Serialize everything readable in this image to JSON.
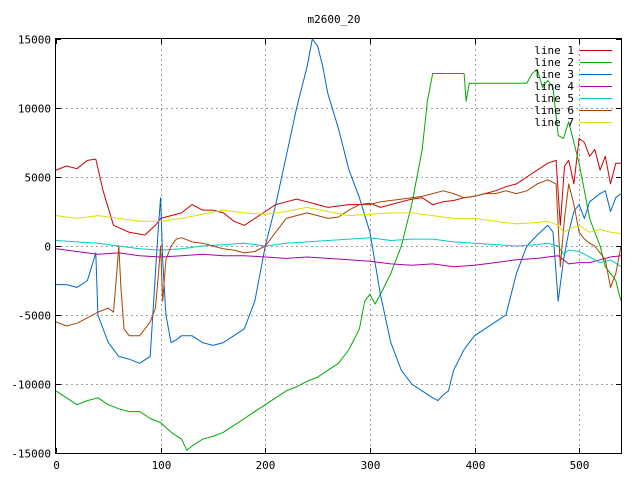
{
  "chart_data": {
    "type": "line",
    "title": "m2600_20",
    "xlabel": "",
    "ylabel": "",
    "xlim": [
      0,
      540
    ],
    "ylim": [
      -15000,
      15000
    ],
    "xticks": [
      0,
      100,
      200,
      300,
      400,
      500
    ],
    "yticks": [
      -15000,
      -10000,
      -5000,
      0,
      5000,
      10000,
      15000
    ],
    "grid": true,
    "legend_position": "top-right",
    "series": [
      {
        "name": "line 1",
        "color": "#cc0000",
        "x": [
          0,
          10,
          20,
          30,
          38,
          45,
          55,
          70,
          85,
          95,
          100,
          110,
          120,
          130,
          140,
          150,
          160,
          170,
          180,
          190,
          200,
          210,
          220,
          230,
          240,
          250,
          260,
          270,
          280,
          290,
          300,
          310,
          320,
          330,
          340,
          350,
          360,
          370,
          380,
          390,
          400,
          410,
          420,
          430,
          440,
          450,
          460,
          470,
          478,
          482,
          486,
          490,
          495,
          500,
          505,
          510,
          515,
          520,
          525,
          530,
          535,
          540
        ],
        "y": [
          5500,
          5800,
          5600,
          6200,
          6300,
          4000,
          1500,
          1000,
          800,
          1500,
          2000,
          2200,
          2400,
          3000,
          2600,
          2600,
          2400,
          1800,
          1500,
          2000,
          2500,
          3000,
          3200,
          3400,
          3200,
          3000,
          2800,
          2900,
          3000,
          3000,
          3100,
          2800,
          3000,
          3200,
          3400,
          3500,
          3000,
          3200,
          3300,
          3500,
          3600,
          3800,
          4000,
          4300,
          4500,
          5000,
          5500,
          6000,
          6200,
          1500,
          5800,
          6200,
          4500,
          7800,
          7500,
          6500,
          7000,
          5500,
          6500,
          4500,
          6000,
          6000
        ]
      },
      {
        "name": "line 2",
        "color": "#00aa00",
        "x": [
          0,
          10,
          20,
          30,
          40,
          50,
          60,
          70,
          80,
          90,
          100,
          110,
          120,
          125,
          130,
          140,
          150,
          160,
          170,
          180,
          190,
          200,
          210,
          220,
          230,
          240,
          250,
          260,
          270,
          280,
          290,
          295,
          300,
          305,
          310,
          320,
          330,
          340,
          350,
          355,
          360,
          370,
          380,
          390,
          392,
          395,
          400,
          410,
          420,
          430,
          440,
          450,
          455,
          460,
          465,
          470,
          475,
          480,
          485,
          490,
          495,
          500,
          505,
          510,
          515,
          520,
          525,
          530,
          535,
          540
        ],
        "y": [
          -10500,
          -11000,
          -11500,
          -11200,
          -11000,
          -11500,
          -11800,
          -12000,
          -12000,
          -12500,
          -12800,
          -13500,
          -14000,
          -14800,
          -14500,
          -14000,
          -13800,
          -13500,
          -13000,
          -12500,
          -12000,
          -11500,
          -11000,
          -10500,
          -10200,
          -9800,
          -9500,
          -9000,
          -8500,
          -7500,
          -6000,
          -4000,
          -3500,
          -4200,
          -3500,
          -2000,
          0,
          3000,
          7000,
          10500,
          12500,
          12500,
          12500,
          12500,
          10500,
          11800,
          11800,
          11800,
          11800,
          11800,
          11800,
          11800,
          12500,
          12800,
          11500,
          12000,
          11500,
          8000,
          7800,
          9000,
          7500,
          6000,
          4000,
          2000,
          1000,
          0,
          -1500,
          -2000,
          -2500,
          -4000
        ]
      },
      {
        "name": "line 3",
        "color": "#0066cc",
        "x": [
          0,
          10,
          20,
          30,
          38,
          40,
          45,
          50,
          60,
          70,
          80,
          90,
          95,
          98,
          100,
          102,
          105,
          110,
          115,
          120,
          130,
          140,
          150,
          160,
          170,
          180,
          190,
          200,
          210,
          220,
          230,
          240,
          245,
          250,
          255,
          260,
          270,
          280,
          290,
          300,
          310,
          320,
          330,
          340,
          350,
          360,
          365,
          370,
          375,
          380,
          390,
          395,
          400,
          410,
          420,
          430,
          440,
          450,
          460,
          470,
          475,
          480,
          485,
          490,
          495,
          500,
          505,
          510,
          515,
          520,
          525,
          530,
          535,
          540
        ],
        "y": [
          -2800,
          -2800,
          -3000,
          -2500,
          -500,
          -5000,
          -6000,
          -7000,
          -8000,
          -8200,
          -8500,
          -8000,
          -2000,
          1500,
          3500,
          -1000,
          -5000,
          -7000,
          -6800,
          -6500,
          -6500,
          -7000,
          -7200,
          -7000,
          -6500,
          -6000,
          -4000,
          0,
          3000,
          6500,
          10000,
          13000,
          15000,
          14500,
          13000,
          11000,
          8500,
          5500,
          3500,
          1000,
          -3500,
          -7000,
          -9000,
          -10000,
          -10500,
          -11000,
          -11200,
          -10800,
          -10500,
          -9000,
          -7500,
          -7000,
          -6500,
          -6000,
          -5500,
          -5000,
          -2000,
          0,
          800,
          1500,
          1000,
          -4000,
          -1000,
          1000,
          2500,
          3000,
          2000,
          3200,
          3500,
          3800,
          4000,
          2500,
          3500,
          3800
        ]
      },
      {
        "name": "line 4",
        "color": "#aa00aa",
        "x": [
          0,
          20,
          40,
          60,
          80,
          100,
          120,
          140,
          160,
          180,
          200,
          220,
          240,
          260,
          280,
          300,
          320,
          340,
          360,
          380,
          400,
          420,
          440,
          460,
          470,
          480,
          485,
          490,
          500,
          510,
          520,
          530,
          540
        ],
        "y": [
          -200,
          -400,
          -600,
          -500,
          -700,
          -800,
          -700,
          -600,
          -700,
          -700,
          -800,
          -900,
          -800,
          -900,
          -1000,
          -1100,
          -1300,
          -1400,
          -1300,
          -1500,
          -1400,
          -1200,
          -1000,
          -900,
          -800,
          -700,
          -1000,
          -1300,
          -1200,
          -1200,
          -1000,
          -800,
          -700
        ]
      },
      {
        "name": "line 5",
        "color": "#00cccc",
        "x": [
          0,
          20,
          40,
          60,
          80,
          100,
          120,
          140,
          160,
          180,
          200,
          220,
          240,
          260,
          280,
          300,
          320,
          340,
          360,
          380,
          400,
          420,
          440,
          460,
          470,
          480,
          485,
          490,
          500,
          510,
          520,
          530,
          540
        ],
        "y": [
          400,
          300,
          200,
          0,
          -200,
          -300,
          -200,
          0,
          100,
          200,
          0,
          200,
          300,
          400,
          500,
          600,
          400,
          500,
          500,
          300,
          200,
          100,
          0,
          100,
          200,
          0,
          -600,
          -300,
          -400,
          -800,
          -1200,
          -1000,
          -1500
        ]
      },
      {
        "name": "line 6",
        "color": "#aa4400",
        "x": [
          0,
          10,
          20,
          30,
          40,
          50,
          55,
          58,
          60,
          62,
          65,
          70,
          80,
          90,
          95,
          98,
          100,
          102,
          105,
          110,
          115,
          120,
          130,
          140,
          150,
          160,
          170,
          180,
          190,
          200,
          210,
          220,
          230,
          240,
          250,
          260,
          270,
          280,
          290,
          300,
          310,
          320,
          330,
          340,
          350,
          360,
          370,
          380,
          390,
          400,
          410,
          420,
          430,
          440,
          450,
          460,
          470,
          478,
          482,
          486,
          490,
          495,
          500,
          505,
          510,
          515,
          520,
          525,
          530,
          535,
          540
        ],
        "y": [
          -5500,
          -5800,
          -5600,
          -5200,
          -4800,
          -4500,
          -4800,
          -2000,
          0,
          -3000,
          -6000,
          -6500,
          -6500,
          -5500,
          -4500,
          -2000,
          0,
          -4000,
          -1000,
          0,
          500,
          600,
          300,
          200,
          0,
          -200,
          -300,
          -500,
          -400,
          0,
          1000,
          2000,
          2200,
          2400,
          2200,
          2000,
          2100,
          2600,
          3000,
          3000,
          3200,
          3300,
          3400,
          3500,
          3600,
          3800,
          4000,
          3800,
          3500,
          3600,
          3800,
          3800,
          4000,
          3800,
          4000,
          4500,
          4800,
          4500,
          -1500,
          2000,
          4500,
          3000,
          1000,
          500,
          200,
          0,
          -500,
          -1000,
          -3000,
          -2000,
          0
        ]
      },
      {
        "name": "line 7",
        "color": "#dddd00",
        "x": [
          0,
          20,
          40,
          60,
          80,
          100,
          120,
          140,
          160,
          180,
          200,
          220,
          240,
          260,
          280,
          300,
          320,
          340,
          360,
          380,
          400,
          420,
          440,
          460,
          470,
          480,
          485,
          490,
          500,
          510,
          520,
          530,
          540
        ],
        "y": [
          2200,
          2000,
          2200,
          2000,
          1800,
          1800,
          2000,
          2300,
          2600,
          2400,
          2300,
          2500,
          2800,
          2500,
          2200,
          2300,
          2400,
          2400,
          2200,
          2000,
          2000,
          1800,
          1600,
          1700,
          1800,
          1500,
          1000,
          1200,
          1500,
          1000,
          1200,
          1000,
          900
        ]
      }
    ]
  }
}
